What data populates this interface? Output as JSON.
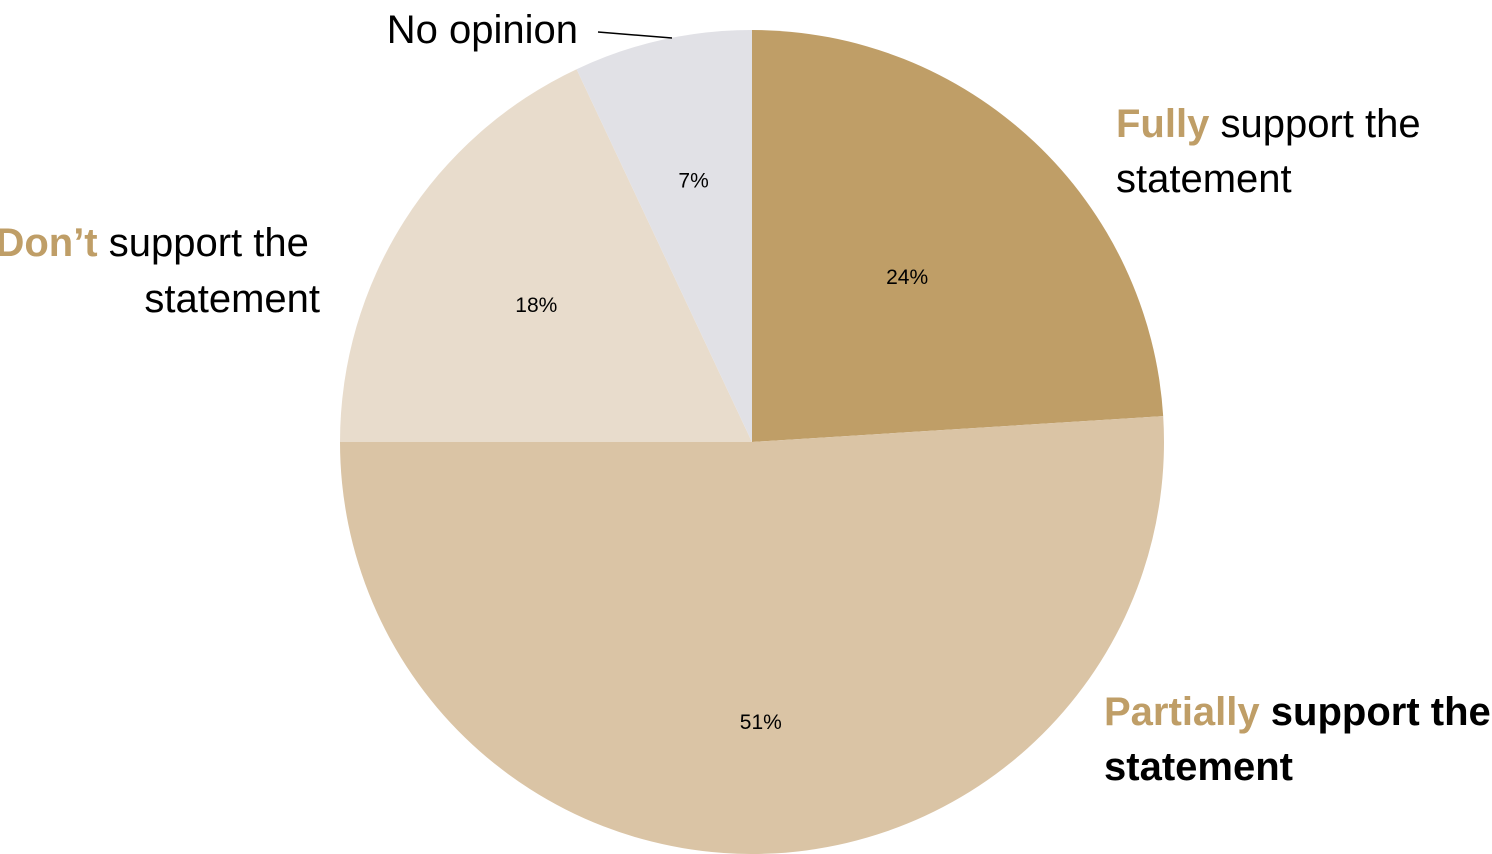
{
  "chart_data": {
    "type": "pie",
    "start_angle": "12 o'clock",
    "direction": "clockwise",
    "slices": [
      {
        "key": "fully",
        "value": 24,
        "value_label": "24%",
        "color": "#bf9e67",
        "label_accent": "Fully",
        "label_rest_line1": " support the",
        "label_line2": "statement"
      },
      {
        "key": "partially",
        "value": 51,
        "value_label": "51%",
        "color": "#dac4a5",
        "label_accent": "Partially",
        "label_rest_line1": " support the",
        "label_line2": "statement"
      },
      {
        "key": "dont",
        "value": 18,
        "value_label": "18%",
        "color": "#e8dccc",
        "label_accent": "Don’t",
        "label_rest_line1": " support the",
        "label_line2": "statement"
      },
      {
        "key": "no-opinion",
        "value": 7,
        "value_label": "7%",
        "color": "#e1e1e6",
        "label": "No opinion"
      }
    ]
  }
}
